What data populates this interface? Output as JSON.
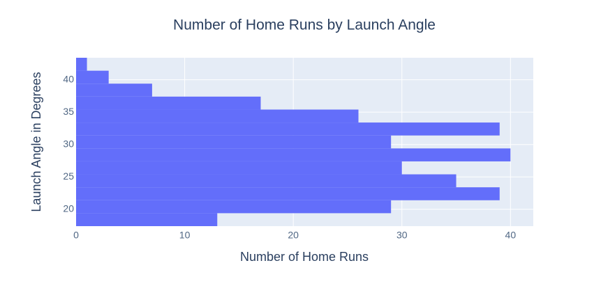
{
  "chart_data": {
    "type": "histogram",
    "orientation": "horizontal",
    "title": "Number of Home Runs by Launch Angle",
    "x_label": "Number of Home Runs",
    "y_label": "Launch Angle in Degrees",
    "bins": [
      17.4,
      19.4,
      21.4,
      23.4,
      25.4,
      27.4,
      29.4,
      31.4,
      33.4,
      35.4,
      37.4,
      39.4,
      41.4,
      43.4
    ],
    "values": [
      13,
      29,
      39,
      35,
      30,
      40,
      29,
      39,
      26,
      17,
      7,
      3,
      1
    ],
    "color": "#636efa",
    "xlim": [
      0,
      42.1
    ],
    "xticks": [
      0,
      10,
      20,
      30,
      40
    ],
    "ylim": [
      17.4,
      43.4
    ],
    "yticks": [
      20,
      25,
      30,
      35,
      40
    ],
    "grid": true
  }
}
